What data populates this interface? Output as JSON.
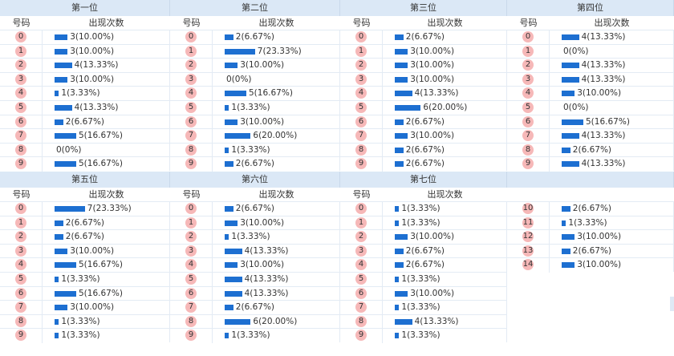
{
  "labels": {
    "col_number": "号码",
    "col_count": "出现次数"
  },
  "positions": [
    {
      "title": "第一位",
      "rows": [
        {
          "n": "0",
          "count": 3,
          "text": "3(10.00%)"
        },
        {
          "n": "1",
          "count": 3,
          "text": "3(10.00%)"
        },
        {
          "n": "2",
          "count": 4,
          "text": "4(13.33%)"
        },
        {
          "n": "3",
          "count": 3,
          "text": "3(10.00%)"
        },
        {
          "n": "4",
          "count": 1,
          "text": "1(3.33%)"
        },
        {
          "n": "5",
          "count": 4,
          "text": "4(13.33%)"
        },
        {
          "n": "6",
          "count": 2,
          "text": "2(6.67%)"
        },
        {
          "n": "7",
          "count": 5,
          "text": "5(16.67%)"
        },
        {
          "n": "8",
          "count": 0,
          "text": "0(0%)"
        },
        {
          "n": "9",
          "count": 5,
          "text": "5(16.67%)"
        }
      ]
    },
    {
      "title": "第二位",
      "rows": [
        {
          "n": "0",
          "count": 2,
          "text": "2(6.67%)"
        },
        {
          "n": "1",
          "count": 7,
          "text": "7(23.33%)"
        },
        {
          "n": "2",
          "count": 3,
          "text": "3(10.00%)"
        },
        {
          "n": "3",
          "count": 0,
          "text": "0(0%)"
        },
        {
          "n": "4",
          "count": 5,
          "text": "5(16.67%)"
        },
        {
          "n": "5",
          "count": 1,
          "text": "1(3.33%)"
        },
        {
          "n": "6",
          "count": 3,
          "text": "3(10.00%)"
        },
        {
          "n": "7",
          "count": 6,
          "text": "6(20.00%)"
        },
        {
          "n": "8",
          "count": 1,
          "text": "1(3.33%)"
        },
        {
          "n": "9",
          "count": 2,
          "text": "2(6.67%)"
        }
      ]
    },
    {
      "title": "第三位",
      "rows": [
        {
          "n": "0",
          "count": 2,
          "text": "2(6.67%)"
        },
        {
          "n": "1",
          "count": 3,
          "text": "3(10.00%)"
        },
        {
          "n": "2",
          "count": 3,
          "text": "3(10.00%)"
        },
        {
          "n": "3",
          "count": 3,
          "text": "3(10.00%)"
        },
        {
          "n": "4",
          "count": 4,
          "text": "4(13.33%)"
        },
        {
          "n": "5",
          "count": 6,
          "text": "6(20.00%)"
        },
        {
          "n": "6",
          "count": 2,
          "text": "2(6.67%)"
        },
        {
          "n": "7",
          "count": 3,
          "text": "3(10.00%)"
        },
        {
          "n": "8",
          "count": 2,
          "text": "2(6.67%)"
        },
        {
          "n": "9",
          "count": 2,
          "text": "2(6.67%)"
        }
      ]
    },
    {
      "title": "第四位",
      "rows": [
        {
          "n": "0",
          "count": 4,
          "text": "4(13.33%)"
        },
        {
          "n": "1",
          "count": 0,
          "text": "0(0%)"
        },
        {
          "n": "2",
          "count": 4,
          "text": "4(13.33%)"
        },
        {
          "n": "3",
          "count": 4,
          "text": "4(13.33%)"
        },
        {
          "n": "4",
          "count": 3,
          "text": "3(10.00%)"
        },
        {
          "n": "5",
          "count": 0,
          "text": "0(0%)"
        },
        {
          "n": "6",
          "count": 5,
          "text": "5(16.67%)"
        },
        {
          "n": "7",
          "count": 4,
          "text": "4(13.33%)"
        },
        {
          "n": "8",
          "count": 2,
          "text": "2(6.67%)"
        },
        {
          "n": "9",
          "count": 4,
          "text": "4(13.33%)"
        }
      ]
    },
    {
      "title": "第五位",
      "rows": [
        {
          "n": "0",
          "count": 7,
          "text": "7(23.33%)"
        },
        {
          "n": "1",
          "count": 2,
          "text": "2(6.67%)"
        },
        {
          "n": "2",
          "count": 2,
          "text": "2(6.67%)"
        },
        {
          "n": "3",
          "count": 3,
          "text": "3(10.00%)"
        },
        {
          "n": "4",
          "count": 5,
          "text": "5(16.67%)"
        },
        {
          "n": "5",
          "count": 1,
          "text": "1(3.33%)"
        },
        {
          "n": "6",
          "count": 5,
          "text": "5(16.67%)"
        },
        {
          "n": "7",
          "count": 3,
          "text": "3(10.00%)"
        },
        {
          "n": "8",
          "count": 1,
          "text": "1(3.33%)"
        },
        {
          "n": "9",
          "count": 1,
          "text": "1(3.33%)"
        }
      ]
    },
    {
      "title": "第六位",
      "rows": [
        {
          "n": "0",
          "count": 2,
          "text": "2(6.67%)"
        },
        {
          "n": "1",
          "count": 3,
          "text": "3(10.00%)"
        },
        {
          "n": "2",
          "count": 1,
          "text": "1(3.33%)"
        },
        {
          "n": "3",
          "count": 4,
          "text": "4(13.33%)"
        },
        {
          "n": "4",
          "count": 3,
          "text": "3(10.00%)"
        },
        {
          "n": "5",
          "count": 4,
          "text": "4(13.33%)"
        },
        {
          "n": "6",
          "count": 4,
          "text": "4(13.33%)"
        },
        {
          "n": "7",
          "count": 2,
          "text": "2(6.67%)"
        },
        {
          "n": "8",
          "count": 6,
          "text": "6(20.00%)"
        },
        {
          "n": "9",
          "count": 1,
          "text": "1(3.33%)"
        }
      ]
    },
    {
      "title": "第七位",
      "rows": [
        {
          "n": "0",
          "count": 1,
          "text": "1(3.33%)"
        },
        {
          "n": "1",
          "count": 1,
          "text": "1(3.33%)"
        },
        {
          "n": "2",
          "count": 3,
          "text": "3(10.00%)"
        },
        {
          "n": "3",
          "count": 2,
          "text": "2(6.67%)"
        },
        {
          "n": "4",
          "count": 2,
          "text": "2(6.67%)"
        },
        {
          "n": "5",
          "count": 1,
          "text": "1(3.33%)"
        },
        {
          "n": "6",
          "count": 3,
          "text": "3(10.00%)"
        },
        {
          "n": "7",
          "count": 1,
          "text": "1(3.33%)"
        },
        {
          "n": "8",
          "count": 4,
          "text": "4(13.33%)"
        },
        {
          "n": "9",
          "count": 1,
          "text": "1(3.33%)"
        }
      ]
    },
    {
      "title": "",
      "rows": [
        {
          "n": "10",
          "count": 2,
          "text": "2(6.67%)"
        },
        {
          "n": "11",
          "count": 1,
          "text": "1(3.33%)"
        },
        {
          "n": "12",
          "count": 3,
          "text": "3(10.00%)"
        },
        {
          "n": "13",
          "count": 2,
          "text": "2(6.67%)"
        },
        {
          "n": "14",
          "count": 3,
          "text": "3(10.00%)"
        }
      ]
    }
  ],
  "colors": {
    "header_bg": "#dbe8f6",
    "ball": "#f6b8b8",
    "bar": "#1d6fd1",
    "grid": "#e3ebf4"
  }
}
